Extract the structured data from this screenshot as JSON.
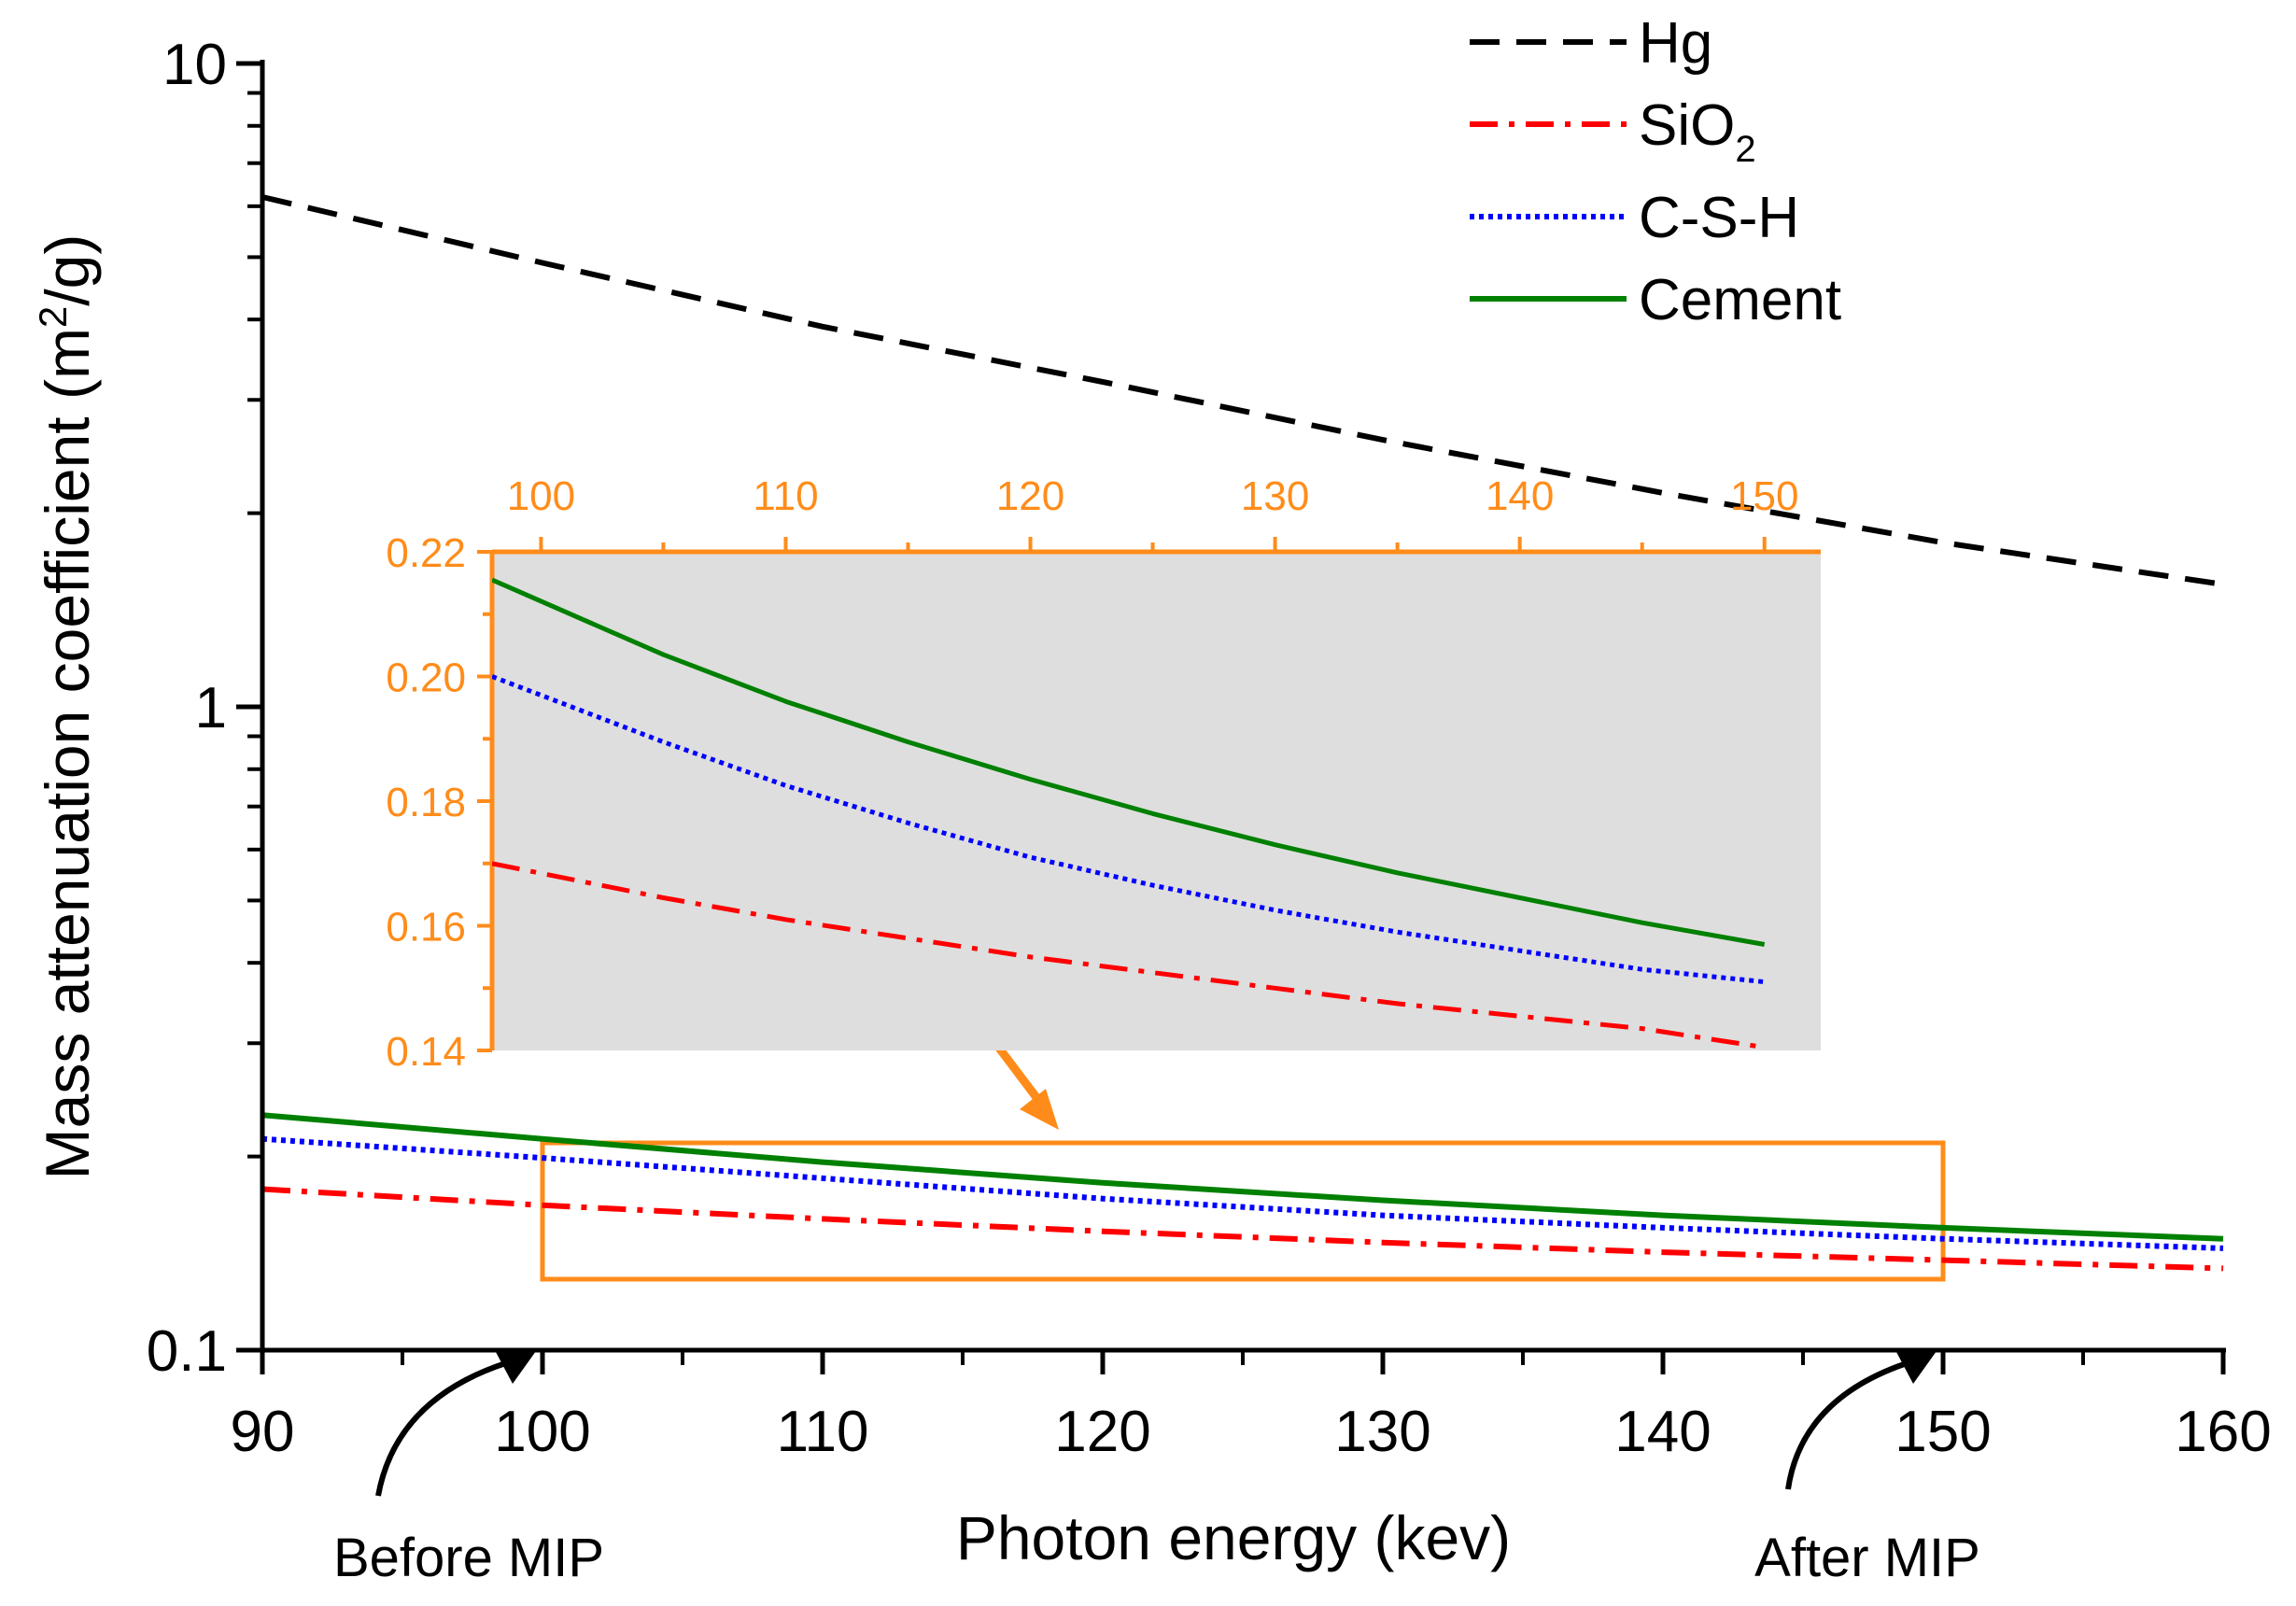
{
  "chart_data": {
    "type": "line",
    "xlabel": "Photon energy (kev)",
    "ylabel_main": "Mass attenuation coefficient (m",
    "ylabel_sup": "2",
    "ylabel_end": "/g)",
    "yscale": "log",
    "xlim": [
      90,
      160
    ],
    "ylim": [
      0.1,
      10
    ],
    "x_ticks": [
      90,
      100,
      110,
      120,
      130,
      140,
      150,
      160
    ],
    "x_tick_labels": [
      "90",
      "100",
      "110",
      "120",
      "130",
      "140",
      "150",
      "160"
    ],
    "y_ticks": [
      0.1,
      1,
      10
    ],
    "y_tick_labels": [
      "0.1",
      "1",
      "10"
    ],
    "x": [
      90,
      100,
      110,
      120,
      130,
      140,
      150,
      160
    ],
    "series": [
      {
        "name": "Hg",
        "name_sub": "",
        "style": "dashed",
        "color": "#000000",
        "values": [
          6.2,
          4.9,
          3.9,
          3.2,
          2.6,
          2.15,
          1.8,
          1.55
        ]
      },
      {
        "name": "SiO",
        "name_sub": "2",
        "style": "dashdot",
        "color": "#ff0000",
        "values": [
          0.178,
          0.168,
          0.16,
          0.153,
          0.147,
          0.142,
          0.138,
          0.134
        ]
      },
      {
        "name": "C-S-H",
        "name_sub": "",
        "style": "dotted",
        "color": "#0000ff",
        "values": [
          0.213,
          0.199,
          0.185,
          0.172,
          0.162,
          0.155,
          0.149,
          0.144
        ]
      },
      {
        "name": "Cement",
        "name_sub": "",
        "style": "solid",
        "color": "#008000",
        "values": [
          0.232,
          0.213,
          0.196,
          0.182,
          0.171,
          0.162,
          0.155,
          0.149
        ]
      }
    ],
    "legend_position": "top-right",
    "inset": {
      "xlim": [
        98,
        152.3
      ],
      "ylim": [
        0.14,
        0.22
      ],
      "x_ticks": [
        100,
        110,
        120,
        130,
        140,
        150
      ],
      "x_tick_labels": [
        "100",
        "110",
        "120",
        "130",
        "140",
        "150"
      ],
      "y_ticks": [
        0.14,
        0.16,
        0.18,
        0.2,
        0.22
      ],
      "y_tick_labels": [
        "0.14",
        "0.16",
        "0.18",
        "0.20",
        "0.22"
      ],
      "x": [
        98,
        105,
        110,
        115,
        120,
        125,
        130,
        135,
        140,
        145,
        150
      ],
      "series": [
        {
          "name": "Cement",
          "color": "#008000",
          "style": "solid",
          "values": [
            0.2155,
            0.2035,
            0.196,
            0.1895,
            0.1835,
            0.178,
            0.173,
            0.1685,
            0.1645,
            0.1605,
            0.157
          ]
        },
        {
          "name": "C-S-H",
          "color": "#0000ff",
          "style": "dotted",
          "values": [
            0.2,
            0.1895,
            0.1825,
            0.1765,
            0.171,
            0.1665,
            0.1625,
            0.159,
            0.156,
            0.153,
            0.151
          ]
        },
        {
          "name": "SiO2",
          "color": "#ff0000",
          "style": "dashdot",
          "values": [
            0.17,
            0.1645,
            0.161,
            0.158,
            0.155,
            0.1525,
            0.15,
            0.1475,
            0.1455,
            0.1435,
            0.1405
          ]
        }
      ]
    },
    "zoom_box": {
      "x_range": [
        100,
        150
      ],
      "y_range": [
        0.14,
        0.22
      ]
    },
    "annotations": [
      {
        "text": "Before MIP",
        "target_x": 100
      },
      {
        "text": "After MIP",
        "target_x": 150
      }
    ],
    "colors": {
      "axis": "#000000",
      "inset_accent": "#ff8c1a",
      "inset_bg": "#dedede"
    }
  }
}
